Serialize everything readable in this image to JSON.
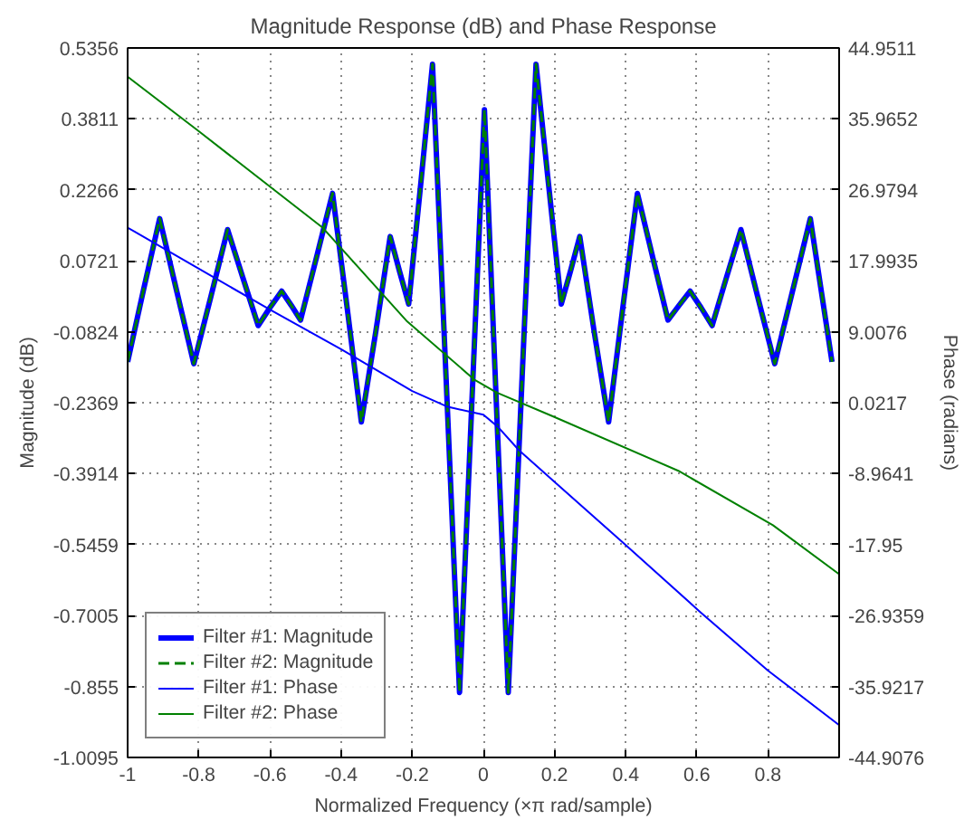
{
  "chart_data": {
    "type": "line",
    "title": "Magnitude Response (dB) and Phase Response",
    "xlabel": "Normalized Frequency (×π rad/sample)",
    "ylabel": "Magnitude (dB)",
    "y2label": "Phase (radians)",
    "x": [
      -1,
      -0.955,
      -0.91,
      -0.862,
      -0.814,
      -0.766,
      -0.719,
      -0.676,
      -0.633,
      -0.6,
      -0.567,
      -0.54,
      -0.514,
      -0.469,
      -0.424,
      -0.383,
      -0.343,
      -0.302,
      -0.262,
      -0.236,
      -0.21,
      -0.176,
      -0.143,
      -0.105,
      -0.067,
      -0.032,
      0.003,
      0.036,
      0.07,
      0.109,
      0.148,
      0.183,
      0.219,
      0.245,
      0.271,
      0.311,
      0.352,
      0.392,
      0.433,
      0.476,
      0.519,
      0.55,
      0.581,
      0.612,
      0.643,
      0.683,
      0.724,
      0.771,
      0.819,
      0.869,
      0.919,
      0.98
    ],
    "series": [
      {
        "name": "Filter #1: Magnitude",
        "color": "#0000ff",
        "line_style": "solid",
        "values": [
          -0.148,
          0.01,
          0.164,
          0.006,
          -0.152,
          -0.006,
          0.14,
          0.035,
          -0.069,
          -0.03,
          0.006,
          -0.025,
          -0.057,
          0.08,
          0.219,
          -0.03,
          -0.279,
          -0.08,
          0.125,
          0.05,
          -0.022,
          0.24,
          0.5,
          -0.18,
          -0.868,
          -0.23,
          0.401,
          -0.23,
          -0.868,
          -0.18,
          0.5,
          0.24,
          -0.022,
          0.05,
          0.125,
          -0.08,
          -0.279,
          -0.03,
          0.219,
          0.08,
          -0.057,
          -0.025,
          0.006,
          -0.03,
          -0.069,
          0.035,
          0.14,
          -0.006,
          -0.152,
          0.006,
          0.164,
          -0.148
        ]
      },
      {
        "name": "Filter #2: Magnitude",
        "color": "#008000",
        "line_style": "dashed",
        "values": [
          -0.148,
          0.01,
          0.164,
          0.006,
          -0.152,
          -0.006,
          0.14,
          0.035,
          -0.069,
          -0.03,
          0.006,
          -0.025,
          -0.057,
          0.08,
          0.219,
          -0.03,
          -0.279,
          -0.08,
          0.125,
          0.05,
          -0.022,
          0.24,
          0.5,
          -0.18,
          -0.868,
          -0.23,
          0.401,
          -0.23,
          -0.868,
          -0.18,
          0.5,
          0.24,
          -0.022,
          0.05,
          0.125,
          -0.08,
          -0.279,
          -0.03,
          0.219,
          0.08,
          -0.057,
          -0.025,
          0.006,
          -0.03,
          -0.069,
          0.035,
          0.14,
          -0.006,
          -0.152,
          0.006,
          0.164,
          -0.148
        ]
      },
      {
        "name": "Filter #1: Phase",
        "color": "#0000ff",
        "axis": "y2",
        "line_style": "solid",
        "x": [
          -1,
          -0.8,
          -0.6,
          -0.4,
          -0.2,
          -0.1,
          0.0,
          0.04,
          0.1,
          0.2,
          0.4,
          0.61,
          0.8,
          1.0
        ],
        "values": [
          22.2,
          17.0,
          11.8,
          6.8,
          1.5,
          -0.5,
          -1.5,
          -3.0,
          -6.0,
          -10.0,
          -18.0,
          -26.5,
          -33.9,
          -40.8
        ]
      },
      {
        "name": "Filter #2: Phase",
        "color": "#008000",
        "axis": "y2",
        "line_style": "solid",
        "x": [
          -1,
          -0.8,
          -0.452,
          -0.214,
          -0.024,
          0.038,
          0.195,
          0.548,
          0.814,
          1.0
        ],
        "values": [
          41.3,
          34.4,
          22.2,
          10.3,
          2.9,
          1.3,
          -1.7,
          -8.6,
          -15.5,
          -21.7
        ]
      }
    ],
    "xlim": [
      -1,
      1
    ],
    "xticks": [
      -1,
      -0.8,
      -0.6,
      -0.4,
      -0.2,
      0,
      0.2,
      0.4,
      0.6,
      0.8
    ],
    "ylim": [
      -1.0095,
      0.5356
    ],
    "yticks": [
      0.5356,
      0.3811,
      0.2266,
      0.0721,
      -0.0824,
      -0.2369,
      -0.3914,
      -0.5459,
      -0.7005,
      -0.855,
      -1.0095
    ],
    "y2lim": [
      -44.9076,
      44.9511
    ],
    "y2ticks": [
      44.9511,
      35.9652,
      26.9794,
      17.9935,
      9.0076,
      0.0217,
      -8.9641,
      -17.95,
      -26.9359,
      -35.9217,
      -44.9076
    ],
    "grid": true,
    "legend": "bottom left"
  }
}
